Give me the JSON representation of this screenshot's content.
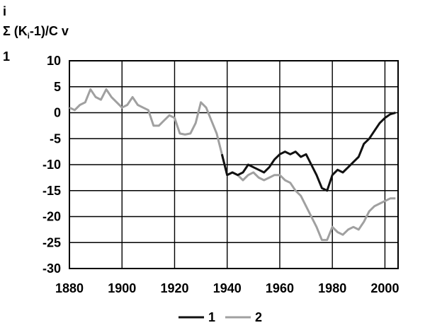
{
  "chart_data": {
    "type": "line",
    "ylabel_lines": [
      "i",
      "Σ (K",
      "i",
      "-1)/C v",
      "1"
    ],
    "xlim": [
      1880,
      2005
    ],
    "ylim": [
      -30,
      10
    ],
    "xticks": [
      1880,
      1900,
      1920,
      1940,
      1960,
      1980,
      2000
    ],
    "yticks": [
      10,
      5,
      0,
      -5,
      -10,
      -15,
      -20,
      -25,
      -30
    ],
    "grid": true,
    "legend_position": "bottom-center",
    "series": [
      {
        "name": "1",
        "color": "#111111",
        "x": [
          1938,
          1940,
          1942,
          1944,
          1946,
          1948,
          1950,
          1952,
          1954,
          1956,
          1958,
          1960,
          1962,
          1964,
          1966,
          1968,
          1970,
          1972,
          1974,
          1976,
          1978,
          1980,
          1982,
          1984,
          1986,
          1988,
          1990,
          1992,
          1994,
          1996,
          1998,
          2000,
          2002,
          2004
        ],
        "y": [
          -8,
          -12,
          -11.5,
          -12,
          -11.5,
          -10,
          -10.5,
          -11,
          -11.5,
          -10.5,
          -9,
          -8,
          -7.5,
          -8,
          -7.5,
          -8.5,
          -8,
          -10,
          -12,
          -14.5,
          -15,
          -12,
          -11,
          -11.5,
          -10.5,
          -9.5,
          -8.5,
          -6,
          -5,
          -3.5,
          -2,
          -1,
          -0.3,
          0
        ]
      },
      {
        "name": "2",
        "color": "#a0a0a0",
        "x": [
          1880,
          1882,
          1884,
          1886,
          1888,
          1890,
          1892,
          1894,
          1896,
          1898,
          1900,
          1902,
          1904,
          1906,
          1908,
          1910,
          1912,
          1914,
          1916,
          1918,
          1920,
          1922,
          1924,
          1926,
          1928,
          1930,
          1932,
          1934,
          1936,
          1938,
          1940,
          1942,
          1944,
          1946,
          1948,
          1950,
          1952,
          1954,
          1956,
          1958,
          1960,
          1962,
          1964,
          1966,
          1968,
          1970,
          1972,
          1974,
          1976,
          1978,
          1980,
          1982,
          1984,
          1986,
          1988,
          1990,
          1992,
          1994,
          1996,
          1998,
          2000,
          2002,
          2004
        ],
        "y": [
          1,
          0.5,
          1.5,
          2,
          4.5,
          3,
          2.5,
          4.5,
          3,
          2,
          1,
          1.5,
          3,
          1.5,
          1,
          0.5,
          -2.5,
          -2.5,
          -1.5,
          -0.5,
          -1,
          -4,
          -4.2,
          -4,
          -2,
          2,
          1,
          -1.5,
          -4,
          -8,
          -12,
          -11.5,
          -12,
          -13,
          -12,
          -11.5,
          -12.5,
          -13,
          -12.5,
          -12,
          -12,
          -13,
          -13.5,
          -15,
          -16,
          -18,
          -20,
          -22,
          -24.5,
          -24.5,
          -22,
          -23,
          -23.5,
          -22.5,
          -22,
          -22.5,
          -21,
          -19,
          -18,
          -17.5,
          -17,
          -16.5,
          -16.5
        ]
      }
    ]
  }
}
